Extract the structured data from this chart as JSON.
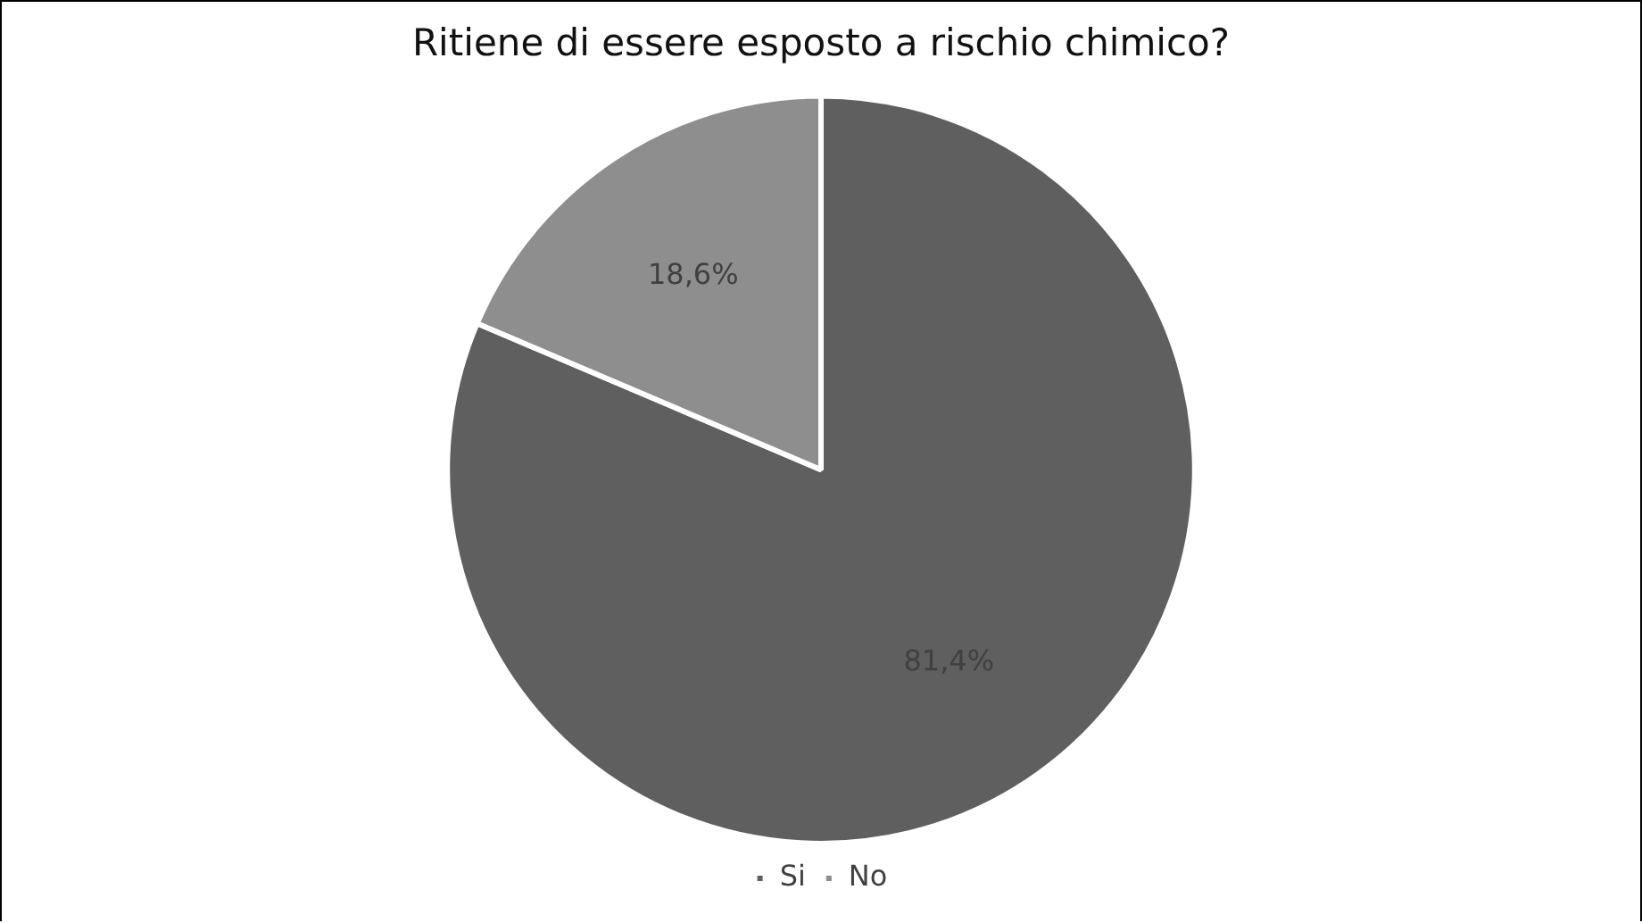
{
  "chart_data": {
    "type": "pie",
    "title": "Ritiene di essere esposto a rischio chimico?",
    "categories": [
      "Si",
      "No"
    ],
    "values": [
      81.4,
      18.6
    ],
    "colors": [
      "#5f5f5f",
      "#8e8e8e"
    ],
    "value_labels": [
      "81,4%",
      "18,6%"
    ],
    "legend": "bottom"
  }
}
